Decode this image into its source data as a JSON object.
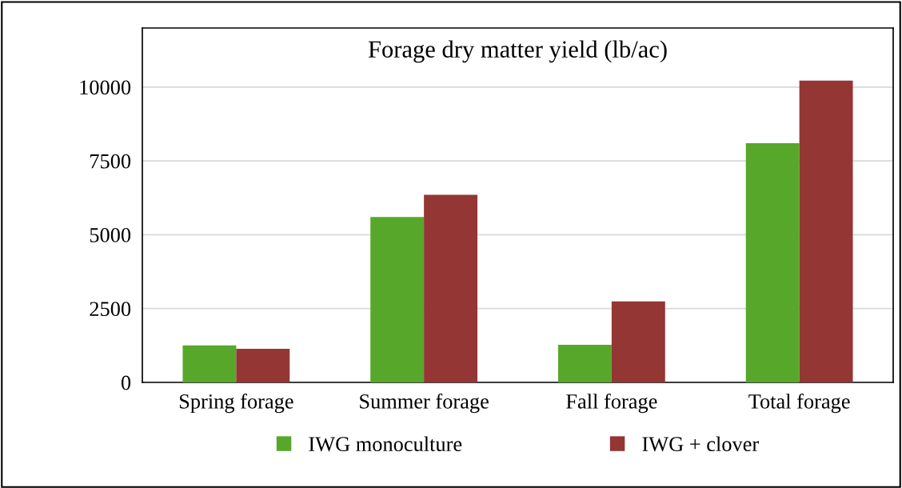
{
  "chart_data": {
    "type": "bar",
    "title": "Forage dry matter yield (lb/ac)",
    "categories": [
      "Spring forage",
      "Summer forage",
      "Fall forage",
      "Total forage"
    ],
    "series": [
      {
        "name": "IWG monoculture",
        "color": "#57a82a",
        "values": [
          1250,
          5600,
          1270,
          8100
        ]
      },
      {
        "name": "IWG + clover",
        "color": "#943634",
        "values": [
          1140,
          6350,
          2740,
          10220
        ]
      }
    ],
    "ylim": [
      0,
      12000
    ],
    "yticks": [
      0,
      2500,
      5000,
      7500,
      10000
    ],
    "grid": "y",
    "legend": "bottom"
  }
}
